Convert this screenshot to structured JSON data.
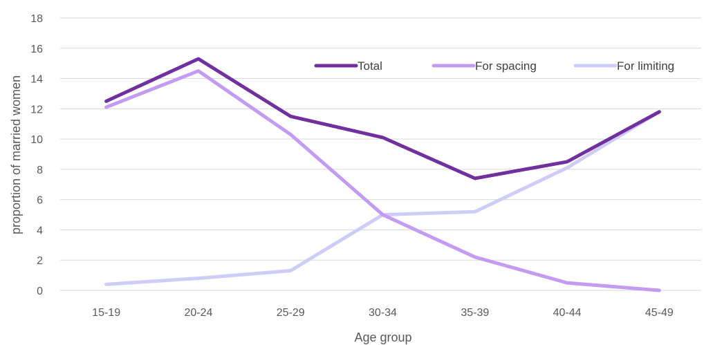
{
  "chart_data": {
    "type": "line",
    "title": "",
    "xlabel": "Age group",
    "ylabel": "proportion  of married women",
    "categories": [
      "15-19",
      "20-24",
      "25-29",
      "30-34",
      "35-39",
      "40-44",
      "45-49"
    ],
    "ylim": [
      0,
      18
    ],
    "yticks": [
      0,
      2,
      4,
      6,
      8,
      10,
      12,
      14,
      16,
      18
    ],
    "grid": true,
    "legend_position": "top-right",
    "series": [
      {
        "name": "Total",
        "color": "#7030a0",
        "values": [
          12.5,
          15.3,
          11.5,
          10.1,
          7.4,
          8.5,
          11.8
        ]
      },
      {
        "name": "For spacing",
        "color": "#c39bf3",
        "values": [
          12.1,
          14.5,
          10.3,
          5.0,
          2.2,
          0.5,
          0.0
        ]
      },
      {
        "name": "For limiting",
        "color": "#cfcdf7",
        "values": [
          0.4,
          0.8,
          1.3,
          5.0,
          5.2,
          8.1,
          11.8
        ]
      }
    ]
  }
}
